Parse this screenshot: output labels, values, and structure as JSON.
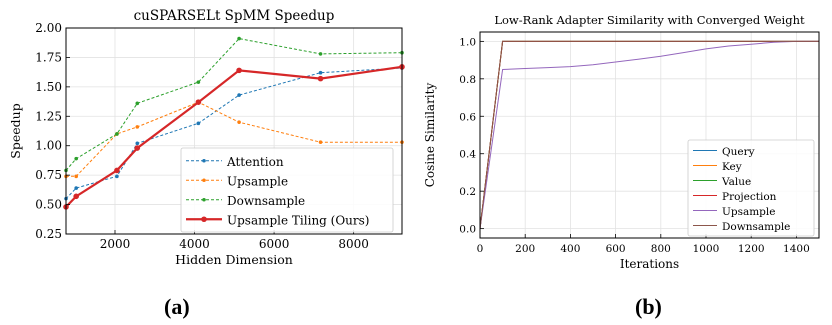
{
  "captions": {
    "left": "(a)",
    "right": "(b)"
  },
  "chart_data": [
    {
      "type": "line",
      "title": "cuSPARSELt SpMM Speedup",
      "xlabel": "Hidden Dimension",
      "ylabel": "Speedup",
      "xlim": [
        768,
        9216
      ],
      "ylim": [
        0.25,
        2.0
      ],
      "x_ticks": [
        2000,
        4000,
        6000,
        8000
      ],
      "x_tick_labels": [
        "2000",
        "4000",
        "6000",
        "8000"
      ],
      "y_ticks": [
        0.25,
        0.5,
        0.75,
        1.0,
        1.25,
        1.5,
        1.75,
        2.0
      ],
      "y_tick_labels": [
        "0.25",
        "0.50",
        "0.75",
        "1.00",
        "1.25",
        "1.50",
        "1.75",
        "2.00"
      ],
      "grid": true,
      "legend": "bottom-right",
      "series": [
        {
          "name": "Attention",
          "color": "#1f77b4",
          "style": "dashed",
          "width": 1,
          "x": [
            768,
            1024,
            2048,
            2560,
            4096,
            5120,
            7168,
            9216
          ],
          "y": [
            0.55,
            0.64,
            0.74,
            1.02,
            1.19,
            1.43,
            1.62,
            1.66
          ]
        },
        {
          "name": "Upsample",
          "color": "#ff7f0e",
          "style": "dashed",
          "width": 1,
          "x": [
            768,
            1024,
            2048,
            2560,
            4096,
            5120,
            7168,
            9216
          ],
          "y": [
            0.74,
            0.74,
            1.1,
            1.16,
            1.37,
            1.2,
            1.03,
            1.03
          ]
        },
        {
          "name": "Downsample",
          "color": "#2ca02c",
          "style": "dashed",
          "width": 1,
          "x": [
            768,
            1024,
            2048,
            2560,
            4096,
            5120,
            7168,
            9216
          ],
          "y": [
            0.79,
            0.89,
            1.1,
            1.36,
            1.54,
            1.91,
            1.78,
            1.79
          ]
        },
        {
          "name": "Upsample Tiling (Ours)",
          "color": "#d62728",
          "style": "solid",
          "width": 2.2,
          "x": [
            768,
            1024,
            2048,
            2560,
            4096,
            5120,
            7168,
            9216
          ],
          "y": [
            0.48,
            0.57,
            0.79,
            0.98,
            1.37,
            1.64,
            1.57,
            1.67
          ]
        }
      ]
    },
    {
      "type": "line",
      "title": "Low-Rank Adapter Similarity with Converged Weight",
      "xlabel": "Iterations",
      "ylabel": "Cosine Similarity",
      "xlim": [
        0,
        1500
      ],
      "ylim": [
        -0.05,
        1.05
      ],
      "x_ticks": [
        0,
        200,
        400,
        600,
        800,
        1000,
        1200,
        1400
      ],
      "x_tick_labels": [
        "0",
        "200",
        "400",
        "600",
        "800",
        "1000",
        "1200",
        "1400"
      ],
      "y_ticks": [
        0.0,
        0.2,
        0.4,
        0.6,
        0.8,
        1.0
      ],
      "y_tick_labels": [
        "0.0",
        "0.2",
        "0.4",
        "0.6",
        "0.8",
        "1.0"
      ],
      "grid": true,
      "legend": "bottom-right",
      "series": [
        {
          "name": "Query",
          "color": "#1f77b4",
          "x": [
            0,
            100,
            1500
          ],
          "y": [
            0.0,
            1.0,
            1.0
          ]
        },
        {
          "name": "Key",
          "color": "#ff7f0e",
          "x": [
            0,
            100,
            1500
          ],
          "y": [
            0.0,
            1.0,
            1.0
          ]
        },
        {
          "name": "Value",
          "color": "#2ca02c",
          "x": [
            0,
            100,
            1500
          ],
          "y": [
            0.0,
            1.0,
            1.0
          ]
        },
        {
          "name": "Projection",
          "color": "#d62728",
          "x": [
            0,
            100,
            1500
          ],
          "y": [
            0.0,
            1.0,
            1.0
          ]
        },
        {
          "name": "Upsample",
          "color": "#9467bd",
          "x": [
            0,
            100,
            200,
            300,
            400,
            500,
            600,
            700,
            800,
            900,
            1000,
            1100,
            1200,
            1300,
            1400,
            1500
          ],
          "y": [
            0.0,
            0.85,
            0.855,
            0.86,
            0.865,
            0.875,
            0.89,
            0.905,
            0.92,
            0.94,
            0.96,
            0.975,
            0.985,
            0.995,
            1.0,
            1.0
          ]
        },
        {
          "name": "Downsample",
          "color": "#8c564b",
          "x": [
            0,
            100,
            1500
          ],
          "y": [
            0.0,
            1.0,
            1.0
          ]
        }
      ]
    }
  ]
}
